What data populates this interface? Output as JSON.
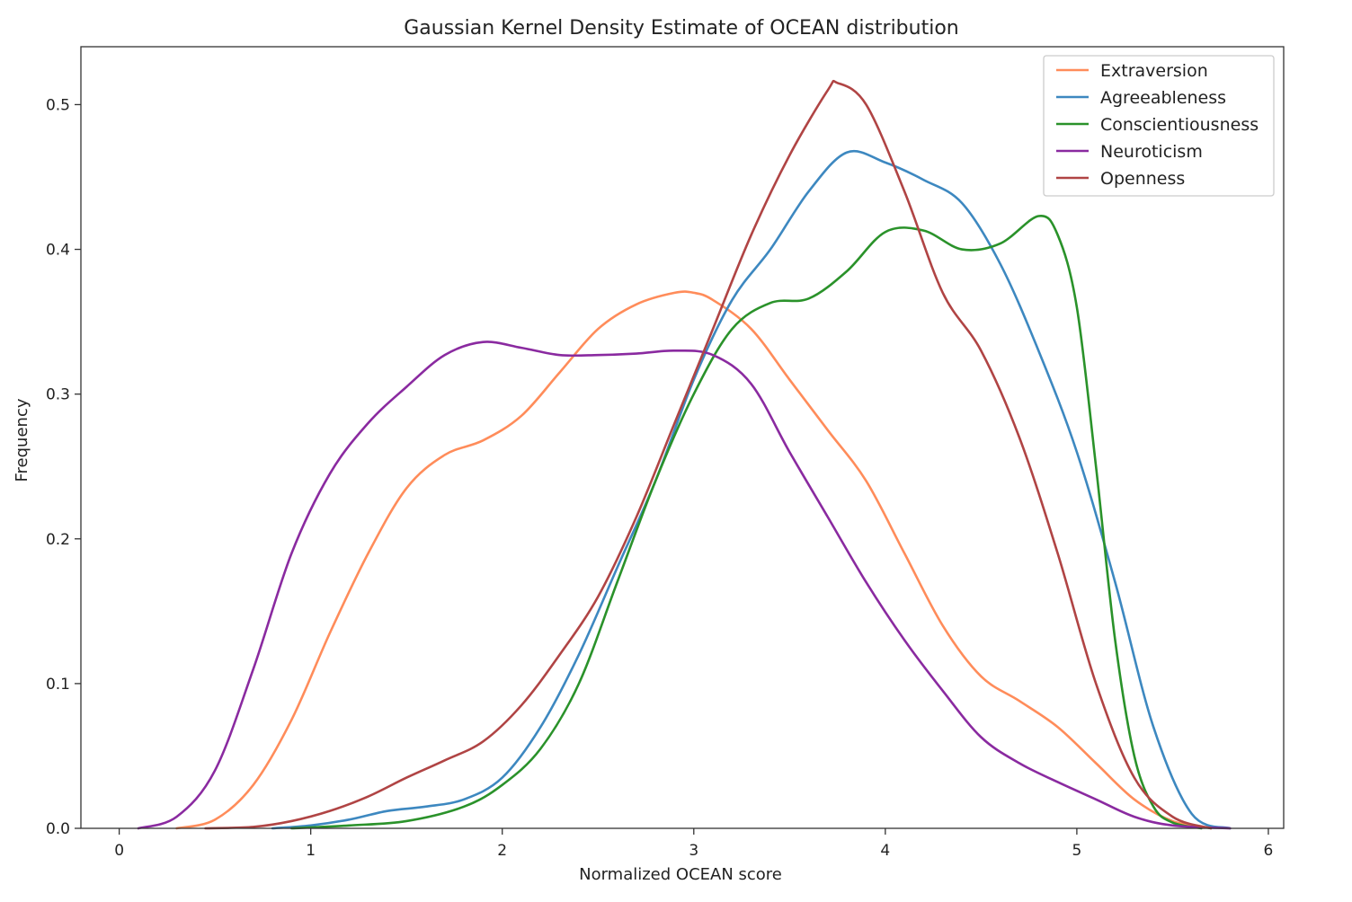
{
  "chart_data": {
    "type": "line",
    "title": "Gaussian Kernel Density Estimate of OCEAN distribution",
    "xlabel": "Normalized OCEAN score",
    "ylabel": "Frequency",
    "xlim": [
      -0.2,
      6.08
    ],
    "ylim": [
      0,
      0.54
    ],
    "xticks": [
      0,
      1,
      2,
      3,
      4,
      5,
      6
    ],
    "xtick_labels": [
      "0",
      "1",
      "2",
      "3",
      "4",
      "5",
      "6"
    ],
    "yticks": [
      0.0,
      0.1,
      0.2,
      0.3,
      0.4,
      0.5
    ],
    "ytick_labels": [
      "0.0",
      "0.1",
      "0.2",
      "0.3",
      "0.4",
      "0.5"
    ],
    "grid": false,
    "legend_position": "top-right",
    "series": [
      {
        "name": "Extraversion",
        "color": "#ff8c5a",
        "points": [
          [
            0.3,
            0.0
          ],
          [
            0.5,
            0.006
          ],
          [
            0.7,
            0.03
          ],
          [
            0.9,
            0.075
          ],
          [
            1.1,
            0.135
          ],
          [
            1.3,
            0.19
          ],
          [
            1.5,
            0.235
          ],
          [
            1.7,
            0.258
          ],
          [
            1.9,
            0.268
          ],
          [
            2.1,
            0.285
          ],
          [
            2.3,
            0.315
          ],
          [
            2.5,
            0.345
          ],
          [
            2.7,
            0.362
          ],
          [
            2.9,
            0.37
          ],
          [
            3.0,
            0.37
          ],
          [
            3.1,
            0.365
          ],
          [
            3.3,
            0.345
          ],
          [
            3.5,
            0.31
          ],
          [
            3.7,
            0.275
          ],
          [
            3.9,
            0.24
          ],
          [
            4.1,
            0.19
          ],
          [
            4.3,
            0.14
          ],
          [
            4.5,
            0.105
          ],
          [
            4.7,
            0.088
          ],
          [
            4.9,
            0.07
          ],
          [
            5.1,
            0.045
          ],
          [
            5.3,
            0.02
          ],
          [
            5.5,
            0.005
          ],
          [
            5.7,
            0.0
          ]
        ]
      },
      {
        "name": "Agreeableness",
        "color": "#3d88c0",
        "points": [
          [
            0.8,
            0.0
          ],
          [
            1.0,
            0.002
          ],
          [
            1.2,
            0.006
          ],
          [
            1.4,
            0.012
          ],
          [
            1.6,
            0.015
          ],
          [
            1.8,
            0.02
          ],
          [
            2.0,
            0.035
          ],
          [
            2.2,
            0.07
          ],
          [
            2.4,
            0.12
          ],
          [
            2.6,
            0.18
          ],
          [
            2.8,
            0.24
          ],
          [
            3.0,
            0.31
          ],
          [
            3.2,
            0.365
          ],
          [
            3.4,
            0.4
          ],
          [
            3.6,
            0.44
          ],
          [
            3.8,
            0.467
          ],
          [
            4.0,
            0.46
          ],
          [
            4.2,
            0.448
          ],
          [
            4.4,
            0.432
          ],
          [
            4.6,
            0.39
          ],
          [
            4.8,
            0.33
          ],
          [
            5.0,
            0.26
          ],
          [
            5.2,
            0.17
          ],
          [
            5.4,
            0.07
          ],
          [
            5.6,
            0.01
          ],
          [
            5.8,
            0.0
          ]
        ]
      },
      {
        "name": "Conscientiousness",
        "color": "#2a922a",
        "points": [
          [
            0.9,
            0.0
          ],
          [
            1.2,
            0.002
          ],
          [
            1.5,
            0.005
          ],
          [
            1.8,
            0.015
          ],
          [
            2.0,
            0.03
          ],
          [
            2.2,
            0.055
          ],
          [
            2.4,
            0.1
          ],
          [
            2.6,
            0.17
          ],
          [
            2.8,
            0.24
          ],
          [
            3.0,
            0.3
          ],
          [
            3.2,
            0.345
          ],
          [
            3.4,
            0.363
          ],
          [
            3.6,
            0.366
          ],
          [
            3.8,
            0.385
          ],
          [
            4.0,
            0.412
          ],
          [
            4.2,
            0.413
          ],
          [
            4.4,
            0.4
          ],
          [
            4.6,
            0.404
          ],
          [
            4.8,
            0.423
          ],
          [
            4.9,
            0.41
          ],
          [
            5.0,
            0.36
          ],
          [
            5.1,
            0.25
          ],
          [
            5.2,
            0.13
          ],
          [
            5.3,
            0.05
          ],
          [
            5.4,
            0.015
          ],
          [
            5.5,
            0.004
          ],
          [
            5.65,
            0.0
          ]
        ]
      },
      {
        "name": "Neuroticism",
        "color": "#8a2aa0",
        "points": [
          [
            0.1,
            0.0
          ],
          [
            0.3,
            0.008
          ],
          [
            0.5,
            0.04
          ],
          [
            0.7,
            0.11
          ],
          [
            0.9,
            0.19
          ],
          [
            1.1,
            0.245
          ],
          [
            1.3,
            0.28
          ],
          [
            1.5,
            0.305
          ],
          [
            1.7,
            0.327
          ],
          [
            1.9,
            0.336
          ],
          [
            2.1,
            0.332
          ],
          [
            2.3,
            0.327
          ],
          [
            2.5,
            0.327
          ],
          [
            2.7,
            0.328
          ],
          [
            2.9,
            0.33
          ],
          [
            3.1,
            0.327
          ],
          [
            3.3,
            0.307
          ],
          [
            3.5,
            0.26
          ],
          [
            3.7,
            0.215
          ],
          [
            3.9,
            0.17
          ],
          [
            4.1,
            0.13
          ],
          [
            4.3,
            0.095
          ],
          [
            4.5,
            0.063
          ],
          [
            4.7,
            0.045
          ],
          [
            4.9,
            0.032
          ],
          [
            5.1,
            0.02
          ],
          [
            5.3,
            0.008
          ],
          [
            5.5,
            0.002
          ],
          [
            5.8,
            0.0
          ]
        ]
      },
      {
        "name": "Openness",
        "color": "#b04444",
        "points": [
          [
            0.45,
            0.0
          ],
          [
            0.7,
            0.001
          ],
          [
            0.9,
            0.005
          ],
          [
            1.1,
            0.012
          ],
          [
            1.3,
            0.022
          ],
          [
            1.5,
            0.035
          ],
          [
            1.7,
            0.047
          ],
          [
            1.9,
            0.06
          ],
          [
            2.1,
            0.085
          ],
          [
            2.3,
            0.12
          ],
          [
            2.5,
            0.16
          ],
          [
            2.7,
            0.215
          ],
          [
            2.9,
            0.28
          ],
          [
            3.1,
            0.345
          ],
          [
            3.3,
            0.41
          ],
          [
            3.5,
            0.465
          ],
          [
            3.7,
            0.51
          ],
          [
            3.75,
            0.515
          ],
          [
            3.9,
            0.5
          ],
          [
            4.1,
            0.44
          ],
          [
            4.3,
            0.37
          ],
          [
            4.5,
            0.33
          ],
          [
            4.7,
            0.27
          ],
          [
            4.9,
            0.19
          ],
          [
            5.1,
            0.1
          ],
          [
            5.3,
            0.035
          ],
          [
            5.5,
            0.008
          ],
          [
            5.7,
            0.0
          ]
        ]
      }
    ]
  }
}
